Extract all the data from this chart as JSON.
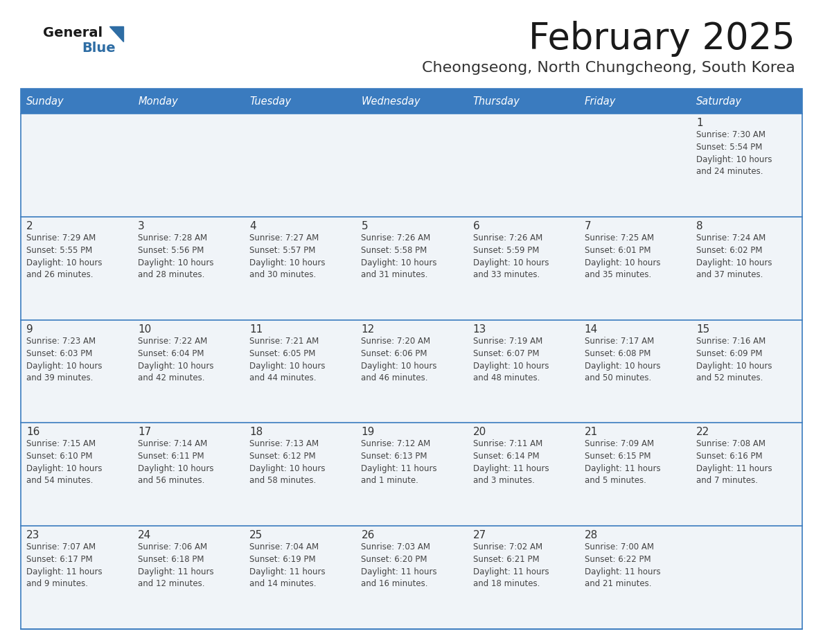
{
  "title": "February 2025",
  "subtitle": "Cheongseong, North Chungcheong, South Korea",
  "header_bg": "#3a7bbf",
  "header_text": "#ffffff",
  "cell_bg": "#f0f4f8",
  "day_number_color": "#333333",
  "cell_text_color": "#444444",
  "grid_line_color": "#3a7bbf",
  "days_of_week": [
    "Sunday",
    "Monday",
    "Tuesday",
    "Wednesday",
    "Thursday",
    "Friday",
    "Saturday"
  ],
  "calendar_data": [
    [
      null,
      null,
      null,
      null,
      null,
      null,
      {
        "day": "1",
        "sunrise": "7:30 AM",
        "sunset": "5:54 PM",
        "daylight": "10 hours\nand 24 minutes."
      }
    ],
    [
      {
        "day": "2",
        "sunrise": "7:29 AM",
        "sunset": "5:55 PM",
        "daylight": "10 hours\nand 26 minutes."
      },
      {
        "day": "3",
        "sunrise": "7:28 AM",
        "sunset": "5:56 PM",
        "daylight": "10 hours\nand 28 minutes."
      },
      {
        "day": "4",
        "sunrise": "7:27 AM",
        "sunset": "5:57 PM",
        "daylight": "10 hours\nand 30 minutes."
      },
      {
        "day": "5",
        "sunrise": "7:26 AM",
        "sunset": "5:58 PM",
        "daylight": "10 hours\nand 31 minutes."
      },
      {
        "day": "6",
        "sunrise": "7:26 AM",
        "sunset": "5:59 PM",
        "daylight": "10 hours\nand 33 minutes."
      },
      {
        "day": "7",
        "sunrise": "7:25 AM",
        "sunset": "6:01 PM",
        "daylight": "10 hours\nand 35 minutes."
      },
      {
        "day": "8",
        "sunrise": "7:24 AM",
        "sunset": "6:02 PM",
        "daylight": "10 hours\nand 37 minutes."
      }
    ],
    [
      {
        "day": "9",
        "sunrise": "7:23 AM",
        "sunset": "6:03 PM",
        "daylight": "10 hours\nand 39 minutes."
      },
      {
        "day": "10",
        "sunrise": "7:22 AM",
        "sunset": "6:04 PM",
        "daylight": "10 hours\nand 42 minutes."
      },
      {
        "day": "11",
        "sunrise": "7:21 AM",
        "sunset": "6:05 PM",
        "daylight": "10 hours\nand 44 minutes."
      },
      {
        "day": "12",
        "sunrise": "7:20 AM",
        "sunset": "6:06 PM",
        "daylight": "10 hours\nand 46 minutes."
      },
      {
        "day": "13",
        "sunrise": "7:19 AM",
        "sunset": "6:07 PM",
        "daylight": "10 hours\nand 48 minutes."
      },
      {
        "day": "14",
        "sunrise": "7:17 AM",
        "sunset": "6:08 PM",
        "daylight": "10 hours\nand 50 minutes."
      },
      {
        "day": "15",
        "sunrise": "7:16 AM",
        "sunset": "6:09 PM",
        "daylight": "10 hours\nand 52 minutes."
      }
    ],
    [
      {
        "day": "16",
        "sunrise": "7:15 AM",
        "sunset": "6:10 PM",
        "daylight": "10 hours\nand 54 minutes."
      },
      {
        "day": "17",
        "sunrise": "7:14 AM",
        "sunset": "6:11 PM",
        "daylight": "10 hours\nand 56 minutes."
      },
      {
        "day": "18",
        "sunrise": "7:13 AM",
        "sunset": "6:12 PM",
        "daylight": "10 hours\nand 58 minutes."
      },
      {
        "day": "19",
        "sunrise": "7:12 AM",
        "sunset": "6:13 PM",
        "daylight": "11 hours\nand 1 minute."
      },
      {
        "day": "20",
        "sunrise": "7:11 AM",
        "sunset": "6:14 PM",
        "daylight": "11 hours\nand 3 minutes."
      },
      {
        "day": "21",
        "sunrise": "7:09 AM",
        "sunset": "6:15 PM",
        "daylight": "11 hours\nand 5 minutes."
      },
      {
        "day": "22",
        "sunrise": "7:08 AM",
        "sunset": "6:16 PM",
        "daylight": "11 hours\nand 7 minutes."
      }
    ],
    [
      {
        "day": "23",
        "sunrise": "7:07 AM",
        "sunset": "6:17 PM",
        "daylight": "11 hours\nand 9 minutes."
      },
      {
        "day": "24",
        "sunrise": "7:06 AM",
        "sunset": "6:18 PM",
        "daylight": "11 hours\nand 12 minutes."
      },
      {
        "day": "25",
        "sunrise": "7:04 AM",
        "sunset": "6:19 PM",
        "daylight": "11 hours\nand 14 minutes."
      },
      {
        "day": "26",
        "sunrise": "7:03 AM",
        "sunset": "6:20 PM",
        "daylight": "11 hours\nand 16 minutes."
      },
      {
        "day": "27",
        "sunrise": "7:02 AM",
        "sunset": "6:21 PM",
        "daylight": "11 hours\nand 18 minutes."
      },
      {
        "day": "28",
        "sunrise": "7:00 AM",
        "sunset": "6:22 PM",
        "daylight": "11 hours\nand 21 minutes."
      },
      null
    ]
  ]
}
